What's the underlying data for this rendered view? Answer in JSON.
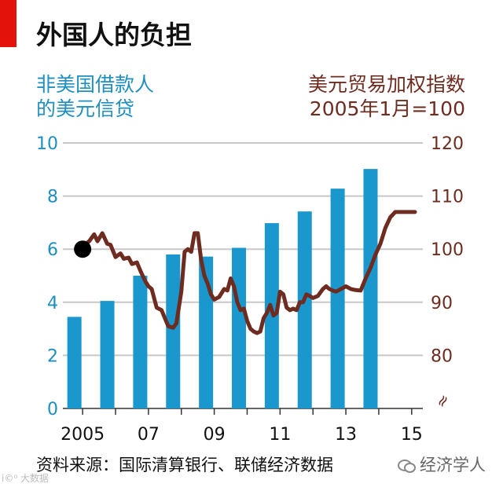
{
  "title": "外国人的负担",
  "left_axis_label": [
    "非美国借款人",
    "的美元信贷"
  ],
  "right_axis_label": [
    "美元贸易加权指数",
    "2005年1月=100"
  ],
  "source": "资料来源：国际清算银行、联储经济数据",
  "brand": "经济学人",
  "watermark": "i©⁰ 大数据",
  "colors": {
    "bars": "#1a98cd",
    "line": "#6e2c20",
    "accent": "#e3120b",
    "left_axis": "#1f8fbf",
    "right_axis": "#6e2c20"
  },
  "chart_data": {
    "type": "bar+line",
    "title": "外国人的负担",
    "x_tick_labels": [
      "2005",
      "07",
      "09",
      "11",
      "13",
      "15"
    ],
    "x_ticks_years": [
      2005,
      2007,
      2009,
      2011,
      2013,
      2015
    ],
    "x_range": [
      2004.4,
      2015.1
    ],
    "left_axis": {
      "label": "非美国借款人的美元信贷",
      "ylim": [
        0,
        10
      ],
      "ticks": [
        0,
        2,
        4,
        6,
        8,
        10
      ],
      "gridlines": true
    },
    "right_axis": {
      "label": "美元贸易加权指数 2005年1月=100",
      "ylim": [
        70,
        120
      ],
      "ticks": [
        80,
        90,
        100,
        110,
        120
      ],
      "axis_break": true,
      "axis_break_symbol": "≈"
    },
    "bar_series": {
      "name": "非美国借款人的美元信贷",
      "x": [
        2004.75,
        2005.75,
        2006.75,
        2007.75,
        2008.75,
        2009.75,
        2010.75,
        2011.75,
        2012.75,
        2013.75
      ],
      "values": [
        3.45,
        4.05,
        5.0,
        5.8,
        5.72,
        6.05,
        6.98,
        7.42,
        8.28,
        9.02
      ]
    },
    "line_series": {
      "name": "美元贸易加权指数",
      "start_marker": {
        "x": 2005.0,
        "y": 100
      },
      "x": [
        2005.0,
        2005.2,
        2005.35,
        2005.45,
        2005.6,
        2005.75,
        2005.85,
        2006.0,
        2006.15,
        2006.25,
        2006.4,
        2006.5,
        2006.65,
        2006.75,
        2006.9,
        2007.0,
        2007.1,
        2007.25,
        2007.4,
        2007.5,
        2007.6,
        2007.75,
        2007.85,
        2008.0,
        2008.1,
        2008.2,
        2008.3,
        2008.4,
        2008.5,
        2008.6,
        2008.7,
        2008.8,
        2008.9,
        2009.0,
        2009.15,
        2009.3,
        2009.4,
        2009.5,
        2009.6,
        2009.7,
        2009.8,
        2009.9,
        2010.0,
        2010.1,
        2010.2,
        2010.3,
        2010.4,
        2010.5,
        2010.6,
        2010.7,
        2010.8,
        2010.9,
        2011.0,
        2011.1,
        2011.2,
        2011.3,
        2011.4,
        2011.5,
        2011.6,
        2011.7,
        2011.8,
        2011.9,
        2012.0,
        2012.15,
        2012.3,
        2012.4,
        2012.5,
        2012.6,
        2012.7,
        2012.85,
        2013.0,
        2013.15,
        2013.3,
        2013.45,
        2013.6,
        2013.75,
        2013.9,
        2014.05,
        2014.2,
        2014.35,
        2014.5,
        2014.6,
        2014.7,
        2014.8,
        2014.9,
        2015.0,
        2015.1
      ],
      "values": [
        100.5,
        101.5,
        102.8,
        101.5,
        103.0,
        101.0,
        100.8,
        98.5,
        99.2,
        98.2,
        98.4,
        97.2,
        97.5,
        96.0,
        94.0,
        93.0,
        92.5,
        89.0,
        88.5,
        87.0,
        85.5,
        85.2,
        86.0,
        92.0,
        99.5,
        100.0,
        99.5,
        103.0,
        103.0,
        98.0,
        95.0,
        93.5,
        91.5,
        90.5,
        91.0,
        92.5,
        92.2,
        94.5,
        93.0,
        90.0,
        88.5,
        88.8,
        86.5,
        85.0,
        84.5,
        84.2,
        84.5,
        87.0,
        88.0,
        89.5,
        87.5,
        88.0,
        92.0,
        91.5,
        89.0,
        88.5,
        88.8,
        88.5,
        90.0,
        90.0,
        91.5,
        91.2,
        90.8,
        91.2,
        92.5,
        93.0,
        92.5,
        92.2,
        92.0,
        92.5,
        93.0,
        92.5,
        92.3,
        92.2,
        94.5,
        96.5,
        99.0,
        101.0,
        104.0,
        106.0,
        107.0,
        107.0,
        107.0,
        107.0,
        107.0,
        107.0,
        107.0
      ]
    }
  }
}
